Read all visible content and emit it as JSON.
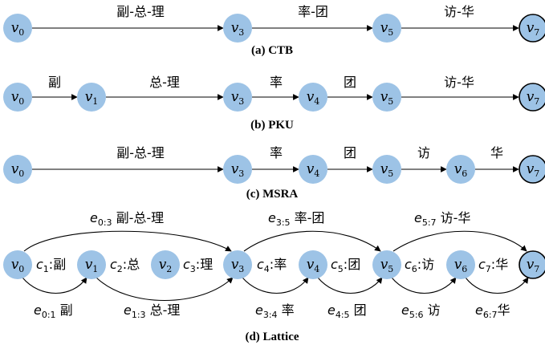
{
  "captions": {
    "ctb": "(a) CTB",
    "pku": "(b) PKU",
    "msra": "(c) MSRA",
    "lattice": "(d) Lattice"
  },
  "nodes": {
    "v0": {
      "base": "v",
      "sub": "0"
    },
    "v1": {
      "base": "v",
      "sub": "1"
    },
    "v2": {
      "base": "v",
      "sub": "2"
    },
    "v3": {
      "base": "v",
      "sub": "3"
    },
    "v4": {
      "base": "v",
      "sub": "4"
    },
    "v5": {
      "base": "v",
      "sub": "5"
    },
    "v6": {
      "base": "v",
      "sub": "6"
    },
    "v7": {
      "base": "v",
      "sub": "7"
    }
  },
  "ctb_edges": {
    "e1": "副-总-理",
    "e2": "率-团",
    "e3": "访-华"
  },
  "pku_edges": {
    "e1": "副",
    "e2": "总-理",
    "e3": "率",
    "e4": "团",
    "e5": "访-华"
  },
  "msra_edges": {
    "e1": "副-总-理",
    "e2": "率",
    "e3": "团",
    "e4": "访",
    "e5": "华"
  },
  "lattice_chars": {
    "c1": {
      "base": "c",
      "sub": "1",
      "text": ":副"
    },
    "c2": {
      "base": "c",
      "sub": "2",
      "text": ":总"
    },
    "c3": {
      "base": "c",
      "sub": "3",
      "text": ":理"
    },
    "c4": {
      "base": "c",
      "sub": "4",
      "text": ":率"
    },
    "c5": {
      "base": "c",
      "sub": "5",
      "text": ":团"
    },
    "c6": {
      "base": "c",
      "sub": "6",
      "text": ":访"
    },
    "c7": {
      "base": "c",
      "sub": "7",
      "text": ":华"
    }
  },
  "lattice_top": {
    "e03": {
      "base": "e",
      "sub": "0:3",
      "text": " 副-总-理"
    },
    "e35": {
      "base": "e",
      "sub": "3:5",
      "text": " 率-团"
    },
    "e57": {
      "base": "e",
      "sub": "5:7",
      "text": " 访-华"
    }
  },
  "lattice_bottom": {
    "e01": {
      "base": "e",
      "sub": "0:1",
      "text": " 副"
    },
    "e13": {
      "base": "e",
      "sub": "1:3",
      "text": " 总-理"
    },
    "e34": {
      "base": "e",
      "sub": "3:4",
      "text": " 率"
    },
    "e45": {
      "base": "e",
      "sub": "4:5",
      "text": " 团"
    },
    "e56": {
      "base": "e",
      "sub": "5:6",
      "text": " 访"
    },
    "e67": {
      "base": "e",
      "sub": "6:7",
      "text": "华"
    }
  }
}
